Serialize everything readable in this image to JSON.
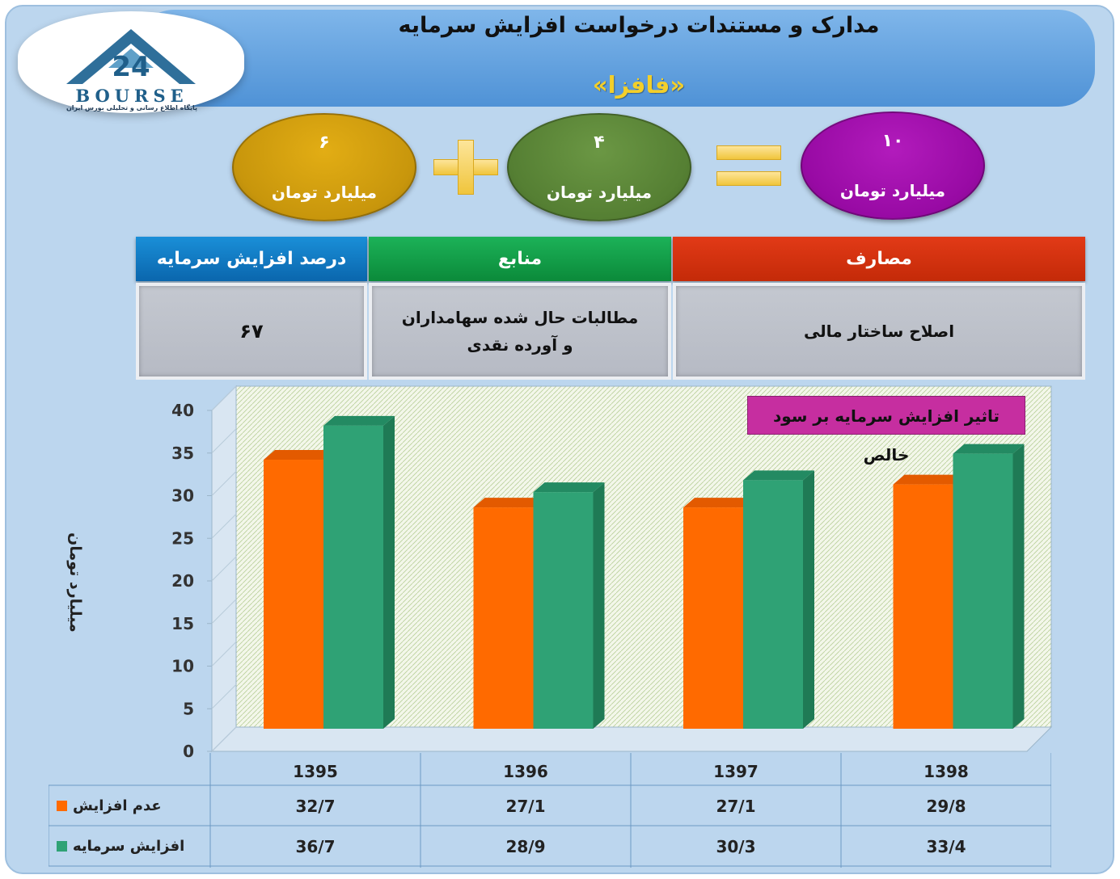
{
  "header": {
    "title": "مدارک و مستندات درخواست افزایش سرمایه",
    "company": "«فافزا»"
  },
  "logo": {
    "mark": "24",
    "word": "BOURSE",
    "tagline": "پایگاه اطلاع رسانی و تحلیلی بورس ایران"
  },
  "equation": {
    "left": {
      "value": "۶",
      "unit": "میلیارد تومان",
      "color": "#c8960c"
    },
    "middle": {
      "value": "۴",
      "unit": "میلیارد تومان",
      "color": "#557f33"
    },
    "result": {
      "value": "۱۰",
      "unit": "میلیارد تومان",
      "color": "#980aa4"
    },
    "plus_icon": "plus-sign-icon",
    "equal_icon": "equals-sign-icon"
  },
  "info_table": {
    "headers": {
      "percent": "درصد افزایش سرمایه",
      "sources": "منابع",
      "uses": "مصارف"
    },
    "values": {
      "percent": "۶۷",
      "sources": "مطالبات حال شده سهامداران و آورده نقدی",
      "uses": "اصلاح ساختار مالی"
    }
  },
  "chart_data": {
    "type": "bar",
    "title": "تاثیر افزایش سرمایه بر سود خالص",
    "ylabel": "میلیارد تومان",
    "xlabel": "",
    "ylim": [
      0,
      40
    ],
    "yticks": [
      0,
      5,
      10,
      15,
      20,
      25,
      30,
      35,
      40
    ],
    "categories": [
      "1395",
      "1396",
      "1397",
      "1398"
    ],
    "grid": false,
    "legend_placement": "data-table-left",
    "series": [
      {
        "name": "عدم افزایش سرمایه",
        "color": "#ff6a00",
        "values": [
          32.7,
          27.1,
          27.1,
          29.8
        ],
        "labels": [
          "32/7",
          "27/1",
          "27/1",
          "29/8"
        ]
      },
      {
        "name": "افزایش سرمایه",
        "color": "#2fa275",
        "values": [
          36.7,
          28.9,
          30.3,
          33.4
        ],
        "labels": [
          "36/7",
          "28/9",
          "30/3",
          "33/4"
        ]
      }
    ]
  }
}
